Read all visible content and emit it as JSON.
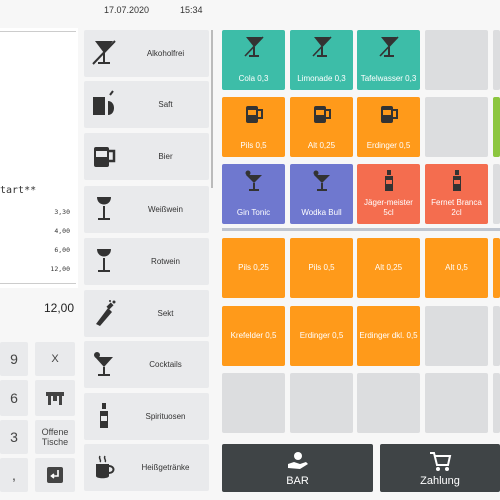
{
  "header": {
    "date": "17.07.2020",
    "time": "15:34"
  },
  "receipt": {
    "start_text": "tart**",
    "amounts": [
      "3,30",
      "4,00",
      "6,00",
      "12,00"
    ],
    "total": "12,00"
  },
  "keypad": [
    {
      "label": "9"
    },
    {
      "label": "X"
    },
    {
      "label": "6"
    },
    {
      "icon": "table-icon"
    },
    {
      "label": "3"
    },
    {
      "label": "Offene Tische"
    },
    {
      "label": ","
    },
    {
      "icon": "enter-icon"
    }
  ],
  "categories": [
    {
      "label": "Alkoholfrei",
      "icon": "no-alcohol-glass-icon"
    },
    {
      "label": "Saft",
      "icon": "juice-icon"
    },
    {
      "label": "Bier",
      "icon": "beer-mug-icon"
    },
    {
      "label": "Weißwein",
      "icon": "wine-glass-icon"
    },
    {
      "label": "Rotwein",
      "icon": "wine-glass-icon"
    },
    {
      "label": "Sekt",
      "icon": "champagne-icon"
    },
    {
      "label": "Cocktails",
      "icon": "cocktail-icon"
    },
    {
      "label": "Spirituosen",
      "icon": "bottle-icon"
    },
    {
      "label": "Heißgetränke",
      "icon": "hot-drink-icon"
    }
  ],
  "products_top": [
    [
      {
        "label": "Cola 0,3",
        "color": "#3dbda8",
        "icon": "no-alcohol-glass-icon"
      },
      {
        "label": "Limonade 0,3",
        "color": "#3dbda8",
        "icon": "no-alcohol-glass-icon"
      },
      {
        "label": "Tafelwasser 0,3",
        "color": "#3dbda8",
        "icon": "no-alcohol-glass-icon"
      }
    ],
    [
      {
        "label": "Pils 0,5",
        "color": "#ff9a1a",
        "icon": "beer-mug-icon"
      },
      {
        "label": "Alt 0,25",
        "color": "#ff9a1a",
        "icon": "beer-mug-icon"
      },
      {
        "label": "Erdinger 0,5",
        "color": "#ff9a1a",
        "icon": "beer-mug-icon"
      }
    ],
    [
      {
        "label": "Gin Tonic",
        "color": "#6f78cf",
        "icon": "cocktail-icon"
      },
      {
        "label": "Wodka Bull",
        "color": "#6f78cf",
        "icon": "cocktail-icon"
      },
      {
        "label": "Jäger-meister 5cl",
        "color": "#f46d4f",
        "icon": "bottle-icon"
      },
      {
        "label": "Fernet Branca 2cl",
        "color": "#f46d4f",
        "icon": "bottle-icon"
      }
    ]
  ],
  "products_bottom": [
    [
      {
        "label": "Pils 0,25"
      },
      {
        "label": "Pils 0,5"
      },
      {
        "label": "Alt 0,25"
      },
      {
        "label": "Alt 0,5"
      }
    ],
    [
      {
        "label": "Krefelder 0,5"
      },
      {
        "label": "Erdinger 0,5"
      },
      {
        "label": "Erdinger dkl. 0,5"
      }
    ]
  ],
  "bottom_buttons": [
    {
      "label": "BAR",
      "icon": "hand-money-icon"
    },
    {
      "label": "Zahlung",
      "icon": "cart-icon"
    }
  ],
  "colors": {
    "teal": "#3dbda8",
    "orange": "#ff9a1a",
    "blue": "#6f78cf",
    "red": "#f46d4f",
    "green": "#8cc63f"
  }
}
